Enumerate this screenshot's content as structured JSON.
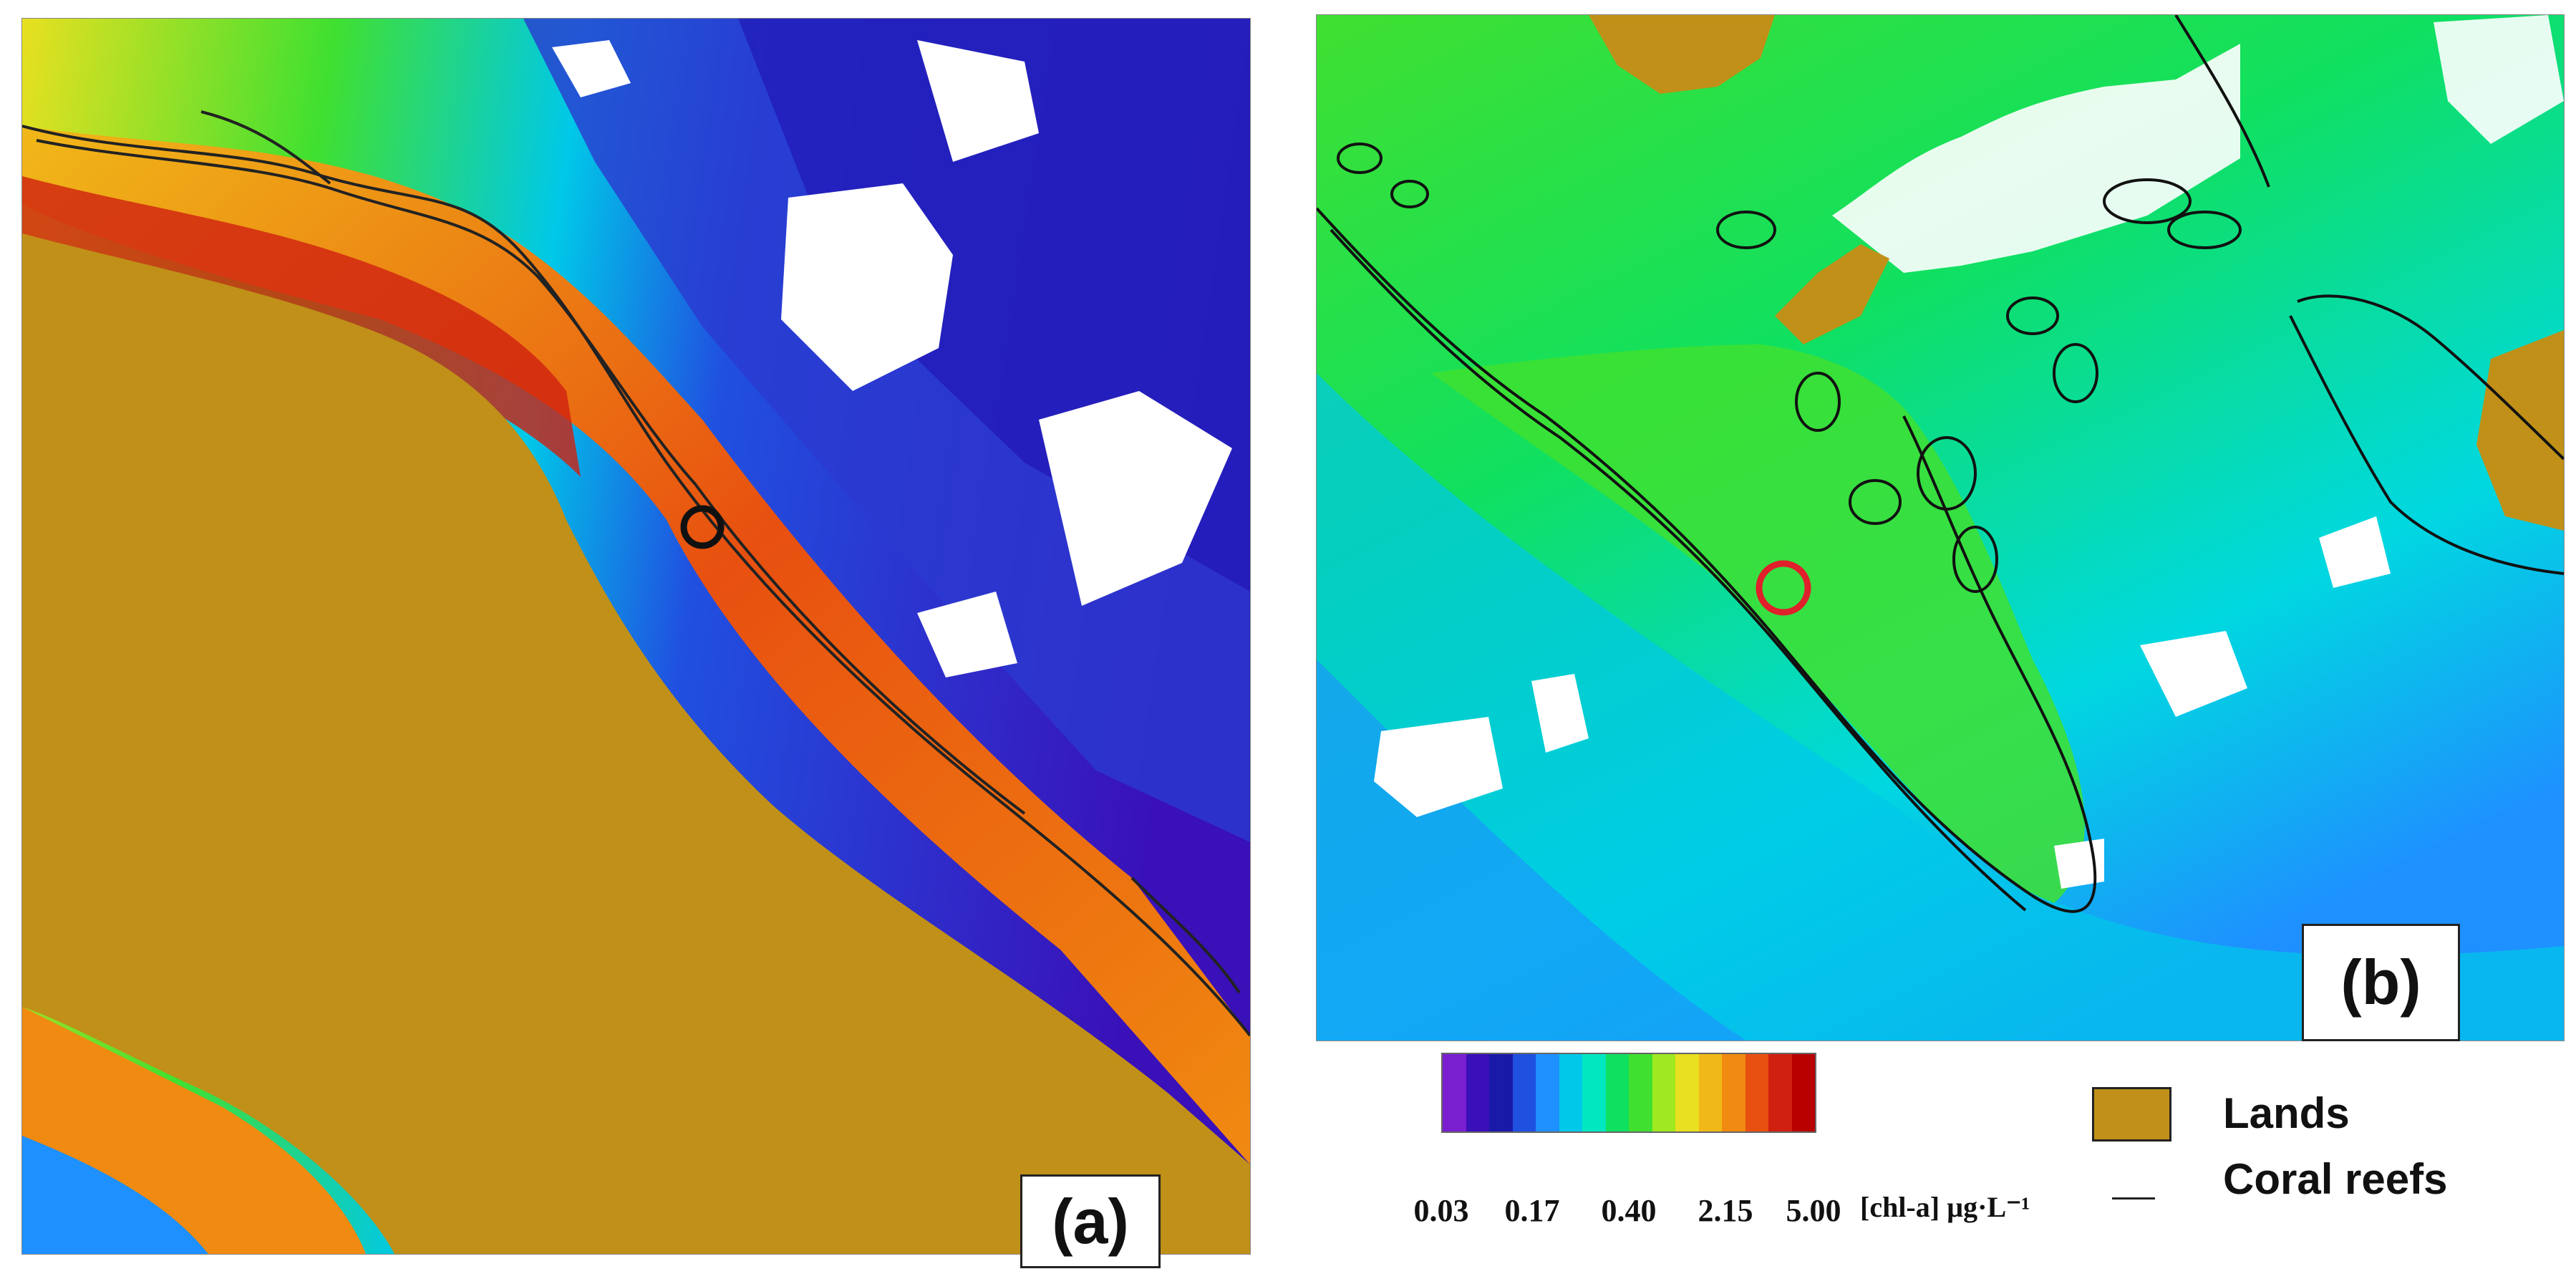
{
  "panels": [
    {
      "label": "(a)",
      "marker_color": "#111111"
    },
    {
      "label": "(b)",
      "marker_color": "#e0202a"
    }
  ],
  "colorbar": {
    "colors": [
      "#7a1fd0",
      "#3a10b8",
      "#1a1aa8",
      "#2050e0",
      "#1e90ff",
      "#00c8e8",
      "#00e8c0",
      "#10e060",
      "#40e030",
      "#a0e820",
      "#e8e020",
      "#f0b818",
      "#f08a10",
      "#e85010",
      "#d02010",
      "#b80000"
    ],
    "tick_labels": [
      "0.03",
      "0.17",
      "0.40",
      "2.15",
      "5.00"
    ],
    "units": "[chl-a] µg·L⁻¹"
  },
  "legend": {
    "land_label": "Lands",
    "land_color": "#c09018",
    "reef_label": "Coral reefs",
    "reef_color": "#222222"
  }
}
